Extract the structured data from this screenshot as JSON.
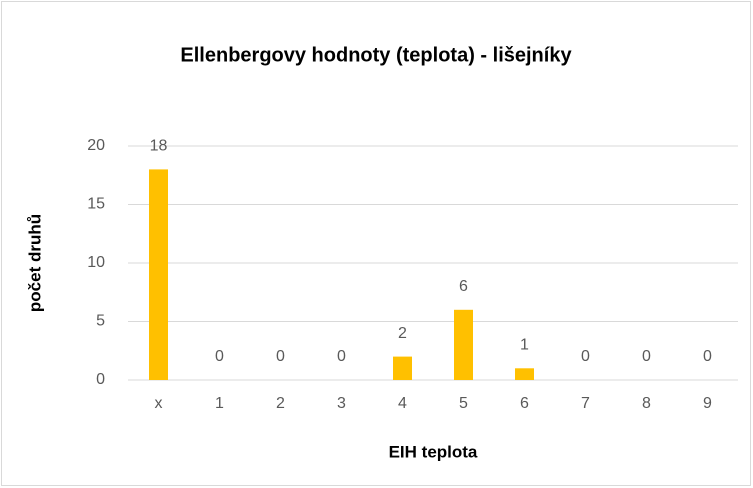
{
  "chart_data": {
    "type": "bar",
    "title": "Ellenbergovy hodnoty (teplota) - lišejníky",
    "x_label": "EIH teplota",
    "y_label": "počet druhů",
    "categories": [
      "x",
      "1",
      "2",
      "3",
      "4",
      "5",
      "6",
      "7",
      "8",
      "9"
    ],
    "values": [
      18,
      0,
      0,
      0,
      2,
      6,
      1,
      0,
      0,
      0
    ],
    "color": "#ffc000",
    "ylim": [
      0,
      20
    ],
    "yticks": [
      0,
      5,
      10,
      15,
      20
    ],
    "grid": true
  }
}
